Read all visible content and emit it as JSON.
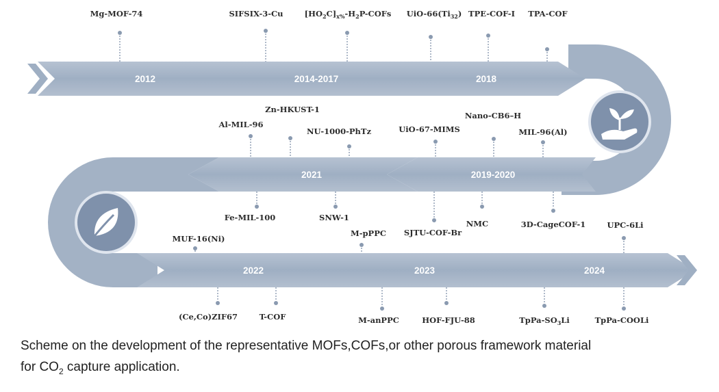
{
  "diagram": {
    "row1": {
      "years": [
        "2012",
        "2014-2017",
        "2018"
      ],
      "labels": {
        "mgmof74": "Mg-MOF-74",
        "sifsix": "SIFSIX-3-Cu",
        "ho2c": [
          "[HO",
          "2",
          "C]",
          "x%",
          "-H",
          "2",
          "P-COFs"
        ],
        "uio66": [
          "UiO-66(Ti",
          "32",
          ")"
        ],
        "tpecof": "TPE-COF-I",
        "tpacof": "TPA-COF"
      }
    },
    "row2": {
      "years": [
        "2021",
        "2019-2020"
      ],
      "labels_top": {
        "almil96": "Al-MIL-96",
        "znhkust": "Zn-HKUST-1",
        "nu1000": "NU-1000-PhTz",
        "uio67": "UiO-67-MIMS",
        "nanocb6": "Nano-CB6–H",
        "mil96al": "MIL-96(Al)"
      },
      "labels_bottom": {
        "femil100": "Fe-MIL-100",
        "snw1": "SNW-1",
        "sjtu": "SJTU-COF-Br",
        "nmc": "NMC",
        "cagecof": "3D-CageCOF-1"
      }
    },
    "row3": {
      "years": [
        "2022",
        "2023",
        "2024"
      ],
      "labels_top": {
        "muf16": "MUF-16(Ni)",
        "mppc": "M-pPPC",
        "upc6li": "UPC-6Li"
      },
      "labels_bottom": {
        "cecozif": "(Ce,Co)ZIF67",
        "tcof": "T-COF",
        "manppc": "M-anPPC",
        "hoffju": "HOF-FJU-88",
        "tppaso3": [
          "TpPa-SO",
          "3",
          "Li"
        ],
        "tppacooli": "TpPa-COOLi"
      }
    },
    "icons": [
      "plant-in-hand-icon",
      "leaf-icon"
    ],
    "colors": {
      "band": "#a9b6c8",
      "band_dark": "#8e9db3",
      "icon_circle": "#7f91ab",
      "text": "#2c2c2c"
    }
  },
  "caption": {
    "line1": "Scheme on the development of the representative MOFs,COFs,or other porous framework material",
    "line2_pre": "for CO",
    "line2_sub": "2",
    "line2_post": " capture application."
  }
}
